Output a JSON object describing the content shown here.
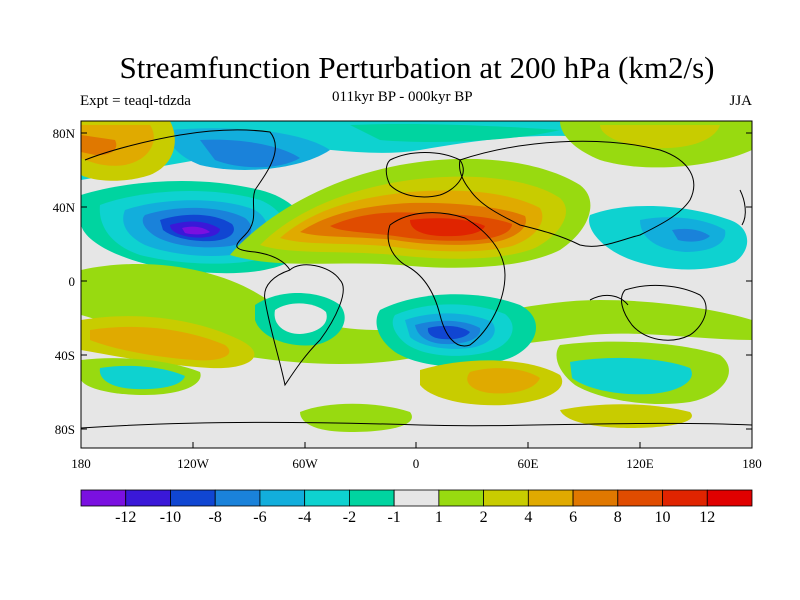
{
  "title": "Streamfunction Perturbation at 200 hPa (km2/s)",
  "left_label": "Expt = teaql-tdzda",
  "center_label": "011kyr BP - 000kyr BP",
  "right_label": "JJA",
  "lat_ticks": [
    "80N",
    "40N",
    "0",
    "40S",
    "80S"
  ],
  "lon_ticks": [
    "180",
    "120W",
    "60W",
    "0",
    "60E",
    "120E",
    "180"
  ],
  "colorbar": {
    "colors": [
      "#7a10e0",
      "#3a18d8",
      "#1046d2",
      "#1a82da",
      "#12aedc",
      "#0ed2d0",
      "#00d4a0",
      "#e6e6e6",
      "#98da10",
      "#c8cc00",
      "#e0aa00",
      "#e07800",
      "#e04c00",
      "#e02400",
      "#e00000"
    ],
    "labels": [
      "-12",
      "-10",
      "-8",
      "-6",
      "-4",
      "-2",
      "-1",
      "1",
      "2",
      "4",
      "6",
      "8",
      "10",
      "12"
    ]
  }
}
